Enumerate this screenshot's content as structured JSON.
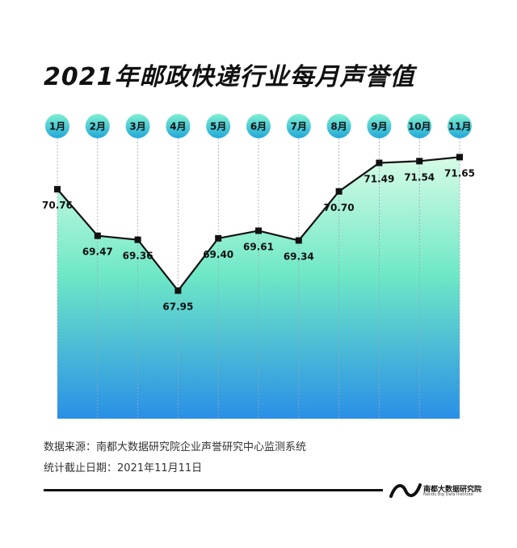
{
  "title": "2021年邮政快递行业每月声誉值",
  "footer": {
    "source": "数据来源：南都大数据研究院企业声誉研究中心监测系统",
    "date": "统计截止日期：2021年11月11日"
  },
  "logo": {
    "name_cn": "南都大数据研究院",
    "name_en": "Nandu Big Data Institute"
  },
  "colors": {
    "area_top": "#d6fbe6",
    "area_mid": "#6ee8c6",
    "area_bottom": "#2a8fe6",
    "bubble_top": "#7ef0d0",
    "bubble_bottom": "#22a8d8",
    "line": "#111111"
  },
  "chart_data": {
    "type": "area",
    "categories": [
      "1月",
      "2月",
      "3月",
      "4月",
      "5月",
      "6月",
      "7月",
      "8月",
      "9月",
      "10月",
      "11月"
    ],
    "values": [
      70.76,
      69.47,
      69.36,
      67.95,
      69.4,
      69.61,
      69.34,
      70.7,
      71.49,
      71.54,
      71.65
    ],
    "labels": [
      "70.76",
      "69.47",
      "69.36",
      "67.95",
      "69.40",
      "69.61",
      "69.34",
      "70.70",
      "71.49",
      "71.54",
      "71.65"
    ],
    "ylim": [
      64.4,
      72.6
    ],
    "grid": false,
    "legend": "none"
  }
}
